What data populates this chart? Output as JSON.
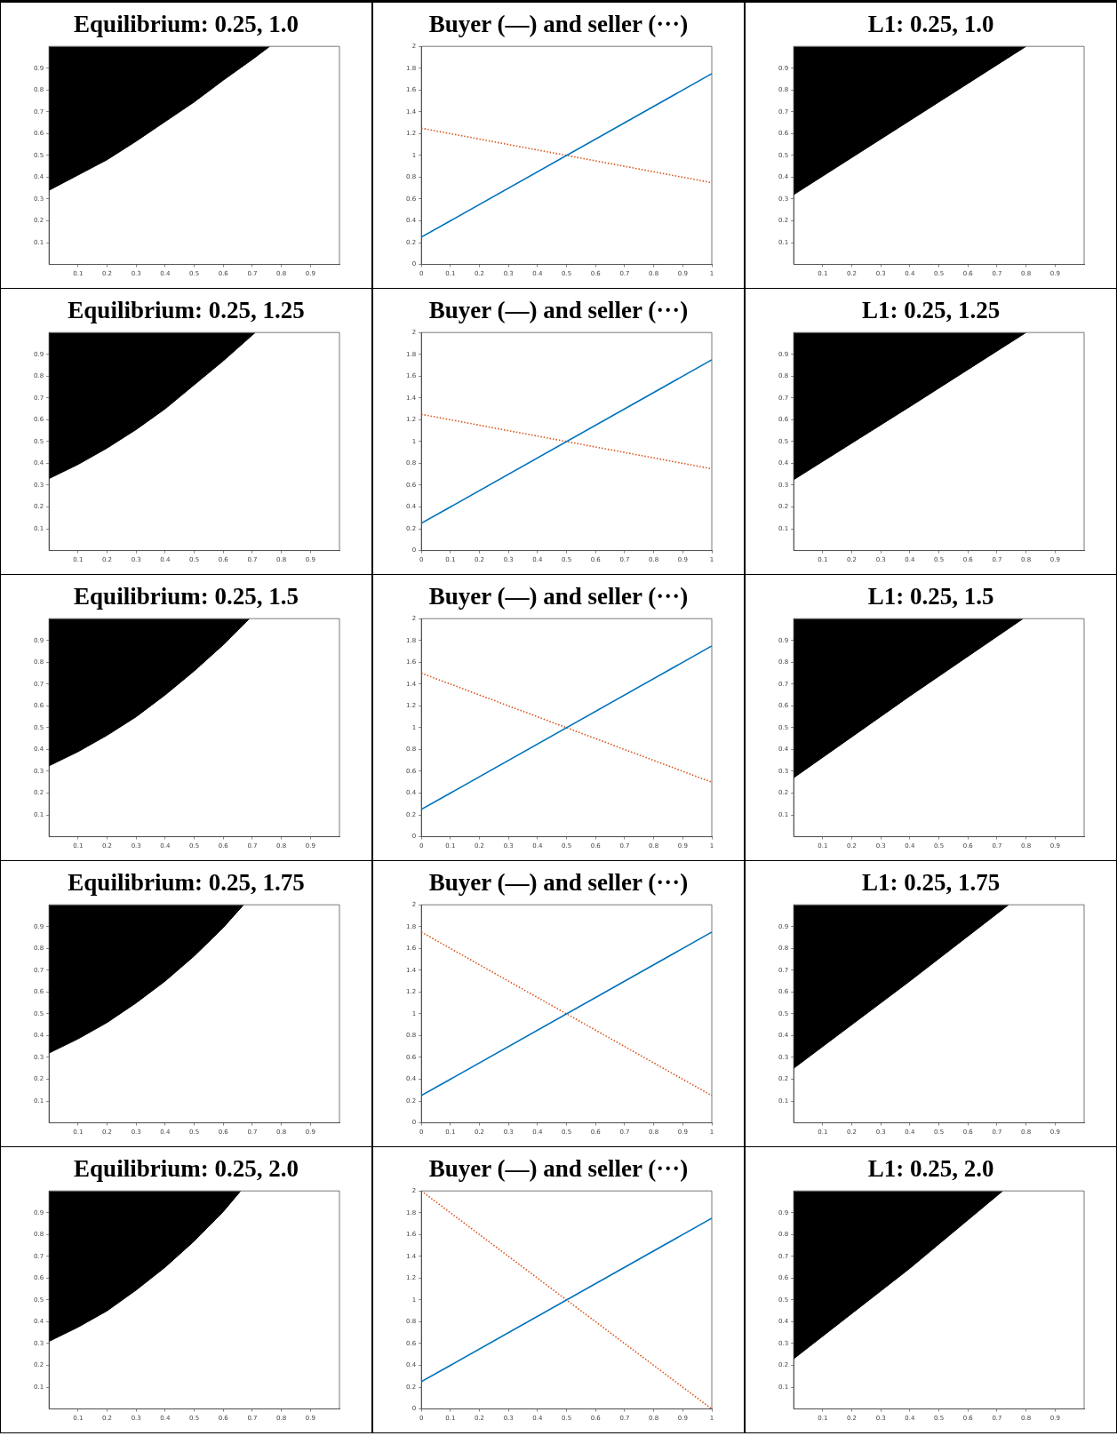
{
  "chart_data": [
    {
      "type": "area",
      "title": "Equilibrium: 0.25, 1.0",
      "xlim": [
        0,
        1
      ],
      "ylim": [
        0,
        1
      ],
      "xticks": [
        0.1,
        0.2,
        0.3,
        0.4,
        0.5,
        0.6,
        0.7,
        0.8,
        0.9
      ],
      "yticks": [
        0.1,
        0.2,
        0.3,
        0.4,
        0.5,
        0.6,
        0.7,
        0.8,
        0.9
      ],
      "grid": false,
      "series": [
        {
          "color": "#000000",
          "x": [
            0,
            0,
            0.1,
            0.2,
            0.3,
            0.4,
            0.5,
            0.6,
            0.7,
            0.76
          ],
          "values": [
            1.0,
            0.34,
            0.41,
            0.48,
            0.565,
            0.655,
            0.745,
            0.845,
            0.94,
            1.0
          ]
        }
      ]
    },
    {
      "type": "line",
      "title": "Buyer (—) and seller (···)",
      "xlim": [
        0,
        1
      ],
      "ylim": [
        0,
        2
      ],
      "xticks": [
        0,
        0.1,
        0.2,
        0.3,
        0.4,
        0.5,
        0.6,
        0.7,
        0.8,
        0.9,
        1
      ],
      "yticks": [
        0,
        0.2,
        0.4,
        0.6,
        0.8,
        1,
        1.2,
        1.4,
        1.6,
        1.8,
        2
      ],
      "grid": false,
      "series": [
        {
          "color": "#0072bd",
          "line_style": "solid",
          "x": [
            0,
            1
          ],
          "values": [
            0.25,
            1.75
          ]
        },
        {
          "color": "#d95319",
          "line_style": "dotted",
          "x": [
            0,
            1
          ],
          "values": [
            1.25,
            0.75
          ]
        }
      ]
    },
    {
      "type": "area",
      "title": "L1: 0.25, 1.0",
      "xlim": [
        0,
        1
      ],
      "ylim": [
        0,
        1
      ],
      "xticks": [
        0.1,
        0.2,
        0.3,
        0.4,
        0.5,
        0.6,
        0.7,
        0.8,
        0.9
      ],
      "yticks": [
        0.1,
        0.2,
        0.3,
        0.4,
        0.5,
        0.6,
        0.7,
        0.8,
        0.9
      ],
      "grid": false,
      "series": [
        {
          "color": "#000000",
          "x": [
            0,
            0,
            0.4,
            0.8
          ],
          "values": [
            1.0,
            0.32,
            0.66,
            1.0
          ]
        }
      ]
    },
    {
      "type": "area",
      "title": "Equilibrium: 0.25, 1.25",
      "xlim": [
        0,
        1
      ],
      "ylim": [
        0,
        1
      ],
      "xticks": [
        0.1,
        0.2,
        0.3,
        0.4,
        0.5,
        0.6,
        0.7,
        0.8,
        0.9
      ],
      "yticks": [
        0.1,
        0.2,
        0.3,
        0.4,
        0.5,
        0.6,
        0.7,
        0.8,
        0.9
      ],
      "grid": false,
      "series": [
        {
          "color": "#000000",
          "x": [
            0,
            0,
            0.1,
            0.2,
            0.3,
            0.4,
            0.5,
            0.6,
            0.71
          ],
          "values": [
            1.0,
            0.33,
            0.395,
            0.47,
            0.555,
            0.65,
            0.76,
            0.87,
            1.0
          ]
        }
      ]
    },
    {
      "type": "line",
      "title": "Buyer (—) and seller (···)",
      "xlim": [
        0,
        1
      ],
      "ylim": [
        0,
        2
      ],
      "xticks": [
        0,
        0.1,
        0.2,
        0.3,
        0.4,
        0.5,
        0.6,
        0.7,
        0.8,
        0.9,
        1
      ],
      "yticks": [
        0,
        0.2,
        0.4,
        0.6,
        0.8,
        1,
        1.2,
        1.4,
        1.6,
        1.8,
        2
      ],
      "grid": false,
      "series": [
        {
          "color": "#0072bd",
          "line_style": "solid",
          "x": [
            0,
            1
          ],
          "values": [
            0.25,
            1.75
          ]
        },
        {
          "color": "#d95319",
          "line_style": "dotted",
          "x": [
            0,
            1
          ],
          "values": [
            1.25,
            0.75
          ]
        }
      ]
    },
    {
      "type": "area",
      "title": "L1: 0.25, 1.25",
      "xlim": [
        0,
        1
      ],
      "ylim": [
        0,
        1
      ],
      "xticks": [
        0.1,
        0.2,
        0.3,
        0.4,
        0.5,
        0.6,
        0.7,
        0.8,
        0.9
      ],
      "yticks": [
        0.1,
        0.2,
        0.3,
        0.4,
        0.5,
        0.6,
        0.7,
        0.8,
        0.9
      ],
      "grid": false,
      "series": [
        {
          "color": "#000000",
          "x": [
            0,
            0,
            0.4,
            0.8
          ],
          "values": [
            1.0,
            0.325,
            0.66,
            1.0
          ]
        }
      ]
    },
    {
      "type": "area",
      "title": "Equilibrium: 0.25, 1.5",
      "xlim": [
        0,
        1
      ],
      "ylim": [
        0,
        1
      ],
      "xticks": [
        0.1,
        0.2,
        0.3,
        0.4,
        0.5,
        0.6,
        0.7,
        0.8,
        0.9
      ],
      "yticks": [
        0.1,
        0.2,
        0.3,
        0.4,
        0.5,
        0.6,
        0.7,
        0.8,
        0.9
      ],
      "grid": false,
      "series": [
        {
          "color": "#000000",
          "x": [
            0,
            0,
            0.1,
            0.2,
            0.3,
            0.4,
            0.5,
            0.6,
            0.69
          ],
          "values": [
            1.0,
            0.325,
            0.39,
            0.465,
            0.55,
            0.65,
            0.76,
            0.88,
            1.0
          ]
        }
      ]
    },
    {
      "type": "line",
      "title": "Buyer (—) and seller (···)",
      "xlim": [
        0,
        1
      ],
      "ylim": [
        0,
        2
      ],
      "xticks": [
        0,
        0.1,
        0.2,
        0.3,
        0.4,
        0.5,
        0.6,
        0.7,
        0.8,
        0.9,
        1
      ],
      "yticks": [
        0,
        0.2,
        0.4,
        0.6,
        0.8,
        1,
        1.2,
        1.4,
        1.6,
        1.8,
        2
      ],
      "grid": false,
      "series": [
        {
          "color": "#0072bd",
          "line_style": "solid",
          "x": [
            0,
            1
          ],
          "values": [
            0.25,
            1.75
          ]
        },
        {
          "color": "#d95319",
          "line_style": "dotted",
          "x": [
            0,
            1
          ],
          "values": [
            1.5,
            0.5
          ]
        }
      ]
    },
    {
      "type": "area",
      "title": "L1: 0.25, 1.5",
      "xlim": [
        0,
        1
      ],
      "ylim": [
        0,
        1
      ],
      "xticks": [
        0.1,
        0.2,
        0.3,
        0.4,
        0.5,
        0.6,
        0.7,
        0.8,
        0.9
      ],
      "yticks": [
        0.1,
        0.2,
        0.3,
        0.4,
        0.5,
        0.6,
        0.7,
        0.8,
        0.9
      ],
      "grid": false,
      "series": [
        {
          "color": "#000000",
          "x": [
            0,
            0,
            0.4,
            0.79
          ],
          "values": [
            1.0,
            0.27,
            0.645,
            1.0
          ]
        }
      ]
    },
    {
      "type": "area",
      "title": "Equilibrium: 0.25, 1.75",
      "xlim": [
        0,
        1
      ],
      "ylim": [
        0,
        1
      ],
      "xticks": [
        0.1,
        0.2,
        0.3,
        0.4,
        0.5,
        0.6,
        0.7,
        0.8,
        0.9
      ],
      "yticks": [
        0.1,
        0.2,
        0.3,
        0.4,
        0.5,
        0.6,
        0.7,
        0.8,
        0.9
      ],
      "grid": false,
      "series": [
        {
          "color": "#000000",
          "x": [
            0,
            0,
            0.1,
            0.2,
            0.3,
            0.4,
            0.5,
            0.6,
            0.67
          ],
          "values": [
            1.0,
            0.32,
            0.385,
            0.46,
            0.55,
            0.65,
            0.765,
            0.895,
            1.0
          ]
        }
      ]
    },
    {
      "type": "line",
      "title": "Buyer (—) and seller (···)",
      "xlim": [
        0,
        1
      ],
      "ylim": [
        0,
        2
      ],
      "xticks": [
        0,
        0.1,
        0.2,
        0.3,
        0.4,
        0.5,
        0.6,
        0.7,
        0.8,
        0.9,
        1
      ],
      "yticks": [
        0,
        0.2,
        0.4,
        0.6,
        0.8,
        1,
        1.2,
        1.4,
        1.6,
        1.8,
        2
      ],
      "grid": false,
      "series": [
        {
          "color": "#0072bd",
          "line_style": "solid",
          "x": [
            0,
            1
          ],
          "values": [
            0.25,
            1.75
          ]
        },
        {
          "color": "#d95319",
          "line_style": "dotted",
          "x": [
            0,
            1
          ],
          "values": [
            1.75,
            0.25
          ]
        }
      ]
    },
    {
      "type": "area",
      "title": "L1: 0.25, 1.75",
      "xlim": [
        0,
        1
      ],
      "ylim": [
        0,
        1
      ],
      "xticks": [
        0.1,
        0.2,
        0.3,
        0.4,
        0.5,
        0.6,
        0.7,
        0.8,
        0.9
      ],
      "yticks": [
        0.1,
        0.2,
        0.3,
        0.4,
        0.5,
        0.6,
        0.7,
        0.8,
        0.9
      ],
      "grid": false,
      "series": [
        {
          "color": "#000000",
          "x": [
            0,
            0,
            0.4,
            0.74
          ],
          "values": [
            1.0,
            0.25,
            0.65,
            1.0
          ]
        }
      ]
    },
    {
      "type": "area",
      "title": "Equilibrium: 0.25, 2.0",
      "xlim": [
        0,
        1
      ],
      "ylim": [
        0,
        1
      ],
      "xticks": [
        0.1,
        0.2,
        0.3,
        0.4,
        0.5,
        0.6,
        0.7,
        0.8,
        0.9
      ],
      "yticks": [
        0.1,
        0.2,
        0.3,
        0.4,
        0.5,
        0.6,
        0.7,
        0.8,
        0.9
      ],
      "grid": false,
      "series": [
        {
          "color": "#000000",
          "x": [
            0,
            0,
            0.1,
            0.2,
            0.3,
            0.4,
            0.5,
            0.6,
            0.66
          ],
          "values": [
            1.0,
            0.31,
            0.375,
            0.45,
            0.545,
            0.65,
            0.77,
            0.905,
            1.0
          ]
        }
      ]
    },
    {
      "type": "line",
      "title": "Buyer (—) and seller (···)",
      "xlim": [
        0,
        1
      ],
      "ylim": [
        0,
        2
      ],
      "xticks": [
        0,
        0.1,
        0.2,
        0.3,
        0.4,
        0.5,
        0.6,
        0.7,
        0.8,
        0.9,
        1
      ],
      "yticks": [
        0,
        0.2,
        0.4,
        0.6,
        0.8,
        1,
        1.2,
        1.4,
        1.6,
        1.8,
        2
      ],
      "grid": false,
      "series": [
        {
          "color": "#0072bd",
          "line_style": "solid",
          "x": [
            0,
            1
          ],
          "values": [
            0.25,
            1.75
          ]
        },
        {
          "color": "#d95319",
          "line_style": "dotted",
          "x": [
            0,
            1
          ],
          "values": [
            2,
            0
          ]
        }
      ]
    },
    {
      "type": "area",
      "title": "L1: 0.25, 2.0",
      "xlim": [
        0,
        1
      ],
      "ylim": [
        0,
        1
      ],
      "xticks": [
        0.1,
        0.2,
        0.3,
        0.4,
        0.5,
        0.6,
        0.7,
        0.8,
        0.9
      ],
      "yticks": [
        0.1,
        0.2,
        0.3,
        0.4,
        0.5,
        0.6,
        0.7,
        0.8,
        0.9
      ],
      "grid": false,
      "series": [
        {
          "color": "#000000",
          "x": [
            0,
            0,
            0.4,
            0.72
          ],
          "values": [
            1.0,
            0.23,
            0.645,
            1.0
          ]
        }
      ]
    }
  ]
}
